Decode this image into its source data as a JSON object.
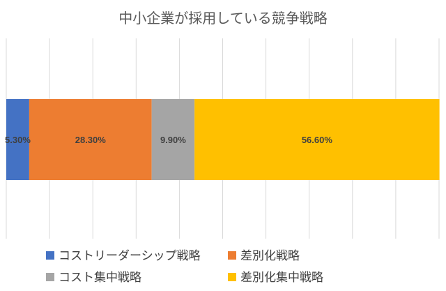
{
  "chart_data": {
    "type": "bar",
    "orientation": "horizontal",
    "stacked": "percent",
    "title": "中小企業が採用している競争戦略",
    "xlim": [
      0,
      100
    ],
    "grid": true,
    "legend_position": "bottom",
    "series": [
      {
        "name": "コストリーダーシップ戦略",
        "value": 5.3,
        "label": "5.30%",
        "color": "#4472C4"
      },
      {
        "name": "差別化戦略",
        "value": 28.3,
        "label": "28.30%",
        "color": "#ED7D31"
      },
      {
        "name": "コスト集中戦略",
        "value": 9.9,
        "label": "9.90%",
        "color": "#A5A5A5"
      },
      {
        "name": "差別化集中戦略",
        "value": 56.6,
        "label": "56.60%",
        "color": "#FFC000"
      }
    ]
  }
}
